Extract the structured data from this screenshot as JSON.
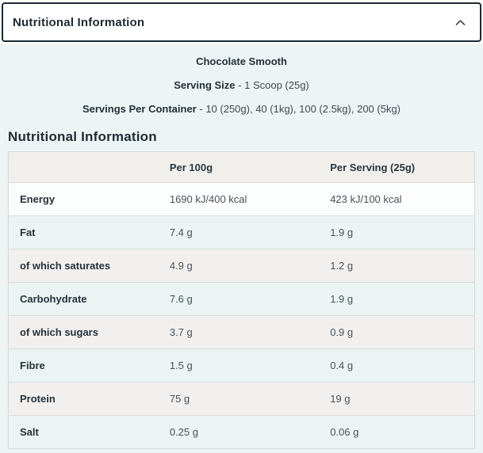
{
  "accordion": {
    "title": "Nutritional Information",
    "chevron_icon": "chevron-up-icon"
  },
  "product": {
    "flavour": "Chocolate Smooth",
    "serving_size_label": "Serving Size",
    "serving_size_value": "- 1 Scoop (25g)",
    "servings_per_container_label": "Servings Per Container",
    "servings_per_container_value": "- 10 (250g), 40 (1kg), 100 (2.5kg), 200 (5kg)"
  },
  "section": {
    "heading": "Nutritional Information"
  },
  "table": {
    "columns": [
      "",
      "Per 100g",
      "Per Serving (25g)"
    ],
    "rows": [
      {
        "name": "Energy",
        "per_100g": "1690 kJ/400 kcal",
        "per_serving": "423 kJ/100 kcal"
      },
      {
        "name": "Fat",
        "per_100g": "7.4 g",
        "per_serving": "1.9 g"
      },
      {
        "name": "of which saturates",
        "per_100g": "4.9 g",
        "per_serving": "1.2 g"
      },
      {
        "name": "Carbohydrate",
        "per_100g": "7.6 g",
        "per_serving": "1.9 g"
      },
      {
        "name": "of which sugars",
        "per_100g": "3.7 g",
        "per_serving": "0.9 g"
      },
      {
        "name": "Fibre",
        "per_100g": "1.5 g",
        "per_serving": "0.4 g"
      },
      {
        "name": "Protein",
        "per_100g": "75 g",
        "per_serving": "19 g"
      },
      {
        "name": "Salt",
        "per_100g": "0.25 g",
        "per_serving": "0.06 g"
      }
    ],
    "row_styles": [
      "white",
      "mint",
      "warm",
      "mint",
      "warm",
      "mint",
      "warm",
      "mint"
    ]
  },
  "theme": {
    "accent_border": "#1c2a33",
    "panel_bg": "#edf4f3",
    "table_header_bg": "#f1efec",
    "row_white": "#fcfdfd",
    "row_alt_mint": "#ebf4f2",
    "row_alt_warm": "#f2f0ee",
    "divider": "#d9dddc",
    "text_dark": "#1e2c36",
    "text_value": "#47525c"
  }
}
